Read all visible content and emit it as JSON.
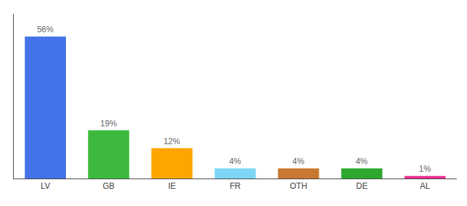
{
  "chart_data": {
    "type": "bar",
    "categories": [
      "LV",
      "GB",
      "IE",
      "FR",
      "OTH",
      "DE",
      "AL"
    ],
    "values": [
      56,
      19,
      12,
      4,
      4,
      4,
      1
    ],
    "value_labels": [
      "56%",
      "19%",
      "12%",
      "4%",
      "4%",
      "4%",
      "1%"
    ],
    "colors": [
      "#4472e8",
      "#3dba3d",
      "#ffa500",
      "#7dd6f5",
      "#c87830",
      "#2ea82e",
      "#f03090"
    ],
    "ylim": [
      0,
      65
    ],
    "grid": false,
    "data_labels": true,
    "tick_labels": "x"
  }
}
